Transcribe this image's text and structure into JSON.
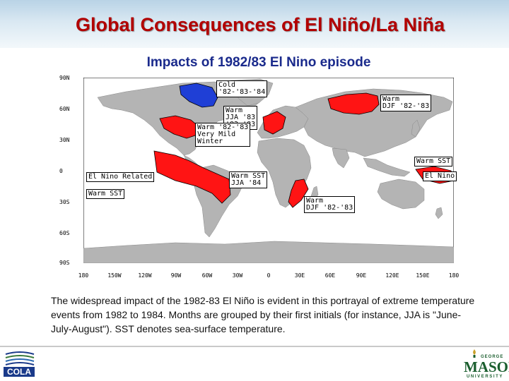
{
  "slide": {
    "title": "Global Consequences of El Niño/La Niña",
    "map_title": "Impacts of 1982/83 El Nino episode",
    "caption": "The widespread impact of the 1982-83 El Niño is evident in this portrayal of extreme temperature events from 1982 to 1984. Months are grouped by their first initials (for instance, JJA is \"June-July-August\"). SST denotes sea-surface temperature."
  },
  "map": {
    "lat_labels": [
      "90N",
      "60N",
      "30N",
      "0",
      "30S",
      "60S",
      "90S"
    ],
    "lon_labels": [
      "180",
      "150W",
      "120W",
      "90W",
      "60W",
      "30W",
      "0",
      "30E",
      "60E",
      "90E",
      "120E",
      "150E",
      "180"
    ],
    "colors": {
      "ocean": "#ffffff",
      "land": "#b4b4b4",
      "warm": "#ff1414",
      "cold": "#1f3fd6"
    },
    "annotations": {
      "cold_na": "Cold\n'82-'83-'84",
      "warm_europe": "Warm\nJJA '83\n'82-'83",
      "warm_us": "Warm '82-'83\nVery Mild\nWinter",
      "warm_siberia": "Warm\nDJF '82-'83",
      "warm_sst_w": "Warm SST",
      "el_nino_e": "El Nino",
      "el_nino_related": "El Nino Related",
      "warm_sst_sa": "Warm SST",
      "warm_sst_africa": "Warm SST\nJJA '84",
      "warm_se_africa": "Warm\nDJF '82-'83"
    }
  },
  "logos": {
    "cola": "COLA",
    "gmu_top": "GEORGE",
    "gmu_main": "MASON",
    "gmu_bottom": "UNIVERSITY"
  }
}
